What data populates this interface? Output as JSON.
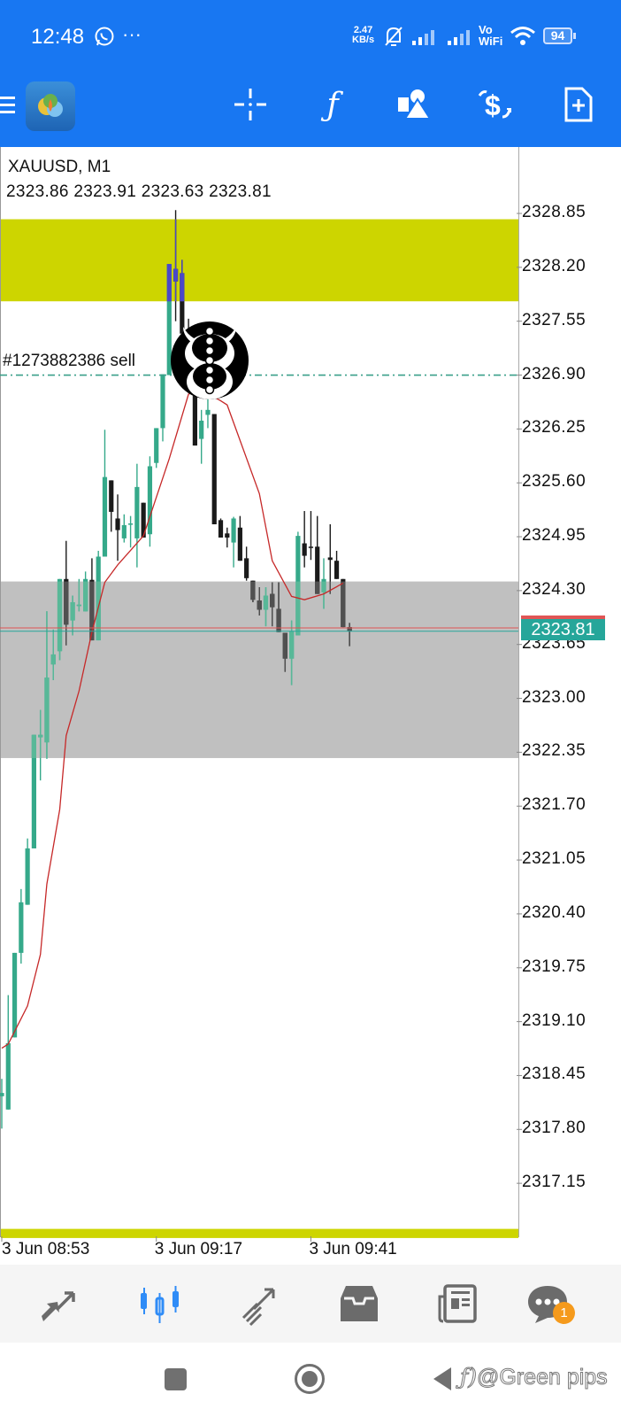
{
  "status_bar": {
    "time": "12:48",
    "more": "···",
    "net_speed_value": "2.47",
    "net_speed_unit": "KB/s",
    "vowifi_top": "Vo",
    "vowifi_bottom": "WiFi",
    "battery": "94"
  },
  "toolbar": {
    "icons": [
      "menu-icon",
      "app-logo",
      "crosshair-icon",
      "indicator-f-icon",
      "objects-icon",
      "trade-icon",
      "new-order-icon"
    ]
  },
  "chart": {
    "symbol_timeframe": "XAUUSD, M1",
    "ohlc_line": "2323.86 2323.91 2323.63 2323.81",
    "order_label": "#1273882386 sell",
    "current_price_label": "2323.81"
  },
  "chart_data": {
    "type": "candlestick",
    "symbol": "XAUUSD",
    "timeframe": "M1",
    "y_ticks": [
      "2328.85",
      "2328.20",
      "2327.55",
      "2326.90",
      "2326.25",
      "2325.60",
      "2324.95",
      "2324.30",
      "2323.65",
      "2323.00",
      "2322.35",
      "2321.70",
      "2321.05",
      "2320.40",
      "2319.75",
      "2319.10",
      "2318.45",
      "2317.80",
      "2317.15"
    ],
    "x_ticks": [
      "3 Jun 08:53",
      "3 Jun 09:17",
      "3 Jun 09:41"
    ],
    "candles": [
      {
        "t": "08:53",
        "o": 2318.2,
        "h": 2318.41,
        "l": 2317.81,
        "c": 2318.24
      },
      {
        "t": "08:54",
        "o": 2318.04,
        "h": 2319.42,
        "l": 2318.04,
        "c": 2318.84
      },
      {
        "t": "08:55",
        "o": 2318.91,
        "h": 2319.93,
        "l": 2318.91,
        "c": 2319.93
      },
      {
        "t": "08:56",
        "o": 2319.93,
        "h": 2320.7,
        "l": 2319.8,
        "c": 2320.54
      },
      {
        "t": "08:57",
        "o": 2320.51,
        "h": 2321.31,
        "l": 2320.51,
        "c": 2321.19
      },
      {
        "t": "08:58",
        "o": 2321.19,
        "h": 2322.56,
        "l": 2321.19,
        "c": 2322.56
      },
      {
        "t": "08:59",
        "o": 2322.53,
        "h": 2322.86,
        "l": 2322.01,
        "c": 2322.56
      },
      {
        "t": "09:00",
        "o": 2322.47,
        "h": 2324.05,
        "l": 2322.27,
        "c": 2323.25
      },
      {
        "t": "09:01",
        "o": 2323.41,
        "h": 2323.83,
        "l": 2323.22,
        "c": 2323.53
      },
      {
        "t": "09:02",
        "o": 2323.57,
        "h": 2324.44,
        "l": 2323.46,
        "c": 2324.44
      },
      {
        "t": "09:03",
        "o": 2324.44,
        "h": 2324.9,
        "l": 2323.64,
        "c": 2323.89
      },
      {
        "t": "09:04",
        "o": 2323.94,
        "h": 2324.24,
        "l": 2323.76,
        "c": 2324.16
      },
      {
        "t": "09:05",
        "o": 2324.12,
        "h": 2324.44,
        "l": 2324.05,
        "c": 2324.13
      },
      {
        "t": "09:06",
        "o": 2324.05,
        "h": 2324.53,
        "l": 2324.05,
        "c": 2324.44
      },
      {
        "t": "09:07",
        "o": 2324.43,
        "h": 2324.69,
        "l": 2323.7,
        "c": 2323.7
      },
      {
        "t": "09:08",
        "o": 2323.7,
        "h": 2324.78,
        "l": 2323.7,
        "c": 2324.71
      },
      {
        "t": "09:09",
        "o": 2324.71,
        "h": 2326.24,
        "l": 2324.71,
        "c": 2325.67
      },
      {
        "t": "09:10",
        "o": 2325.63,
        "h": 2325.63,
        "l": 2325.01,
        "c": 2325.25
      },
      {
        "t": "09:11",
        "o": 2325.17,
        "h": 2325.46,
        "l": 2324.66,
        "c": 2325.03
      },
      {
        "t": "09:12",
        "o": 2324.93,
        "h": 2325.22,
        "l": 2324.88,
        "c": 2325.09
      },
      {
        "t": "09:13",
        "o": 2325.1,
        "h": 2325.2,
        "l": 2324.82,
        "c": 2325.11
      },
      {
        "t": "09:14",
        "o": 2324.93,
        "h": 2325.83,
        "l": 2324.58,
        "c": 2325.55
      },
      {
        "t": "09:15",
        "o": 2325.36,
        "h": 2325.36,
        "l": 2324.94,
        "c": 2324.94
      },
      {
        "t": "09:16",
        "o": 2324.98,
        "h": 2325.92,
        "l": 2324.83,
        "c": 2325.8
      },
      {
        "t": "09:17",
        "o": 2325.84,
        "h": 2326.26,
        "l": 2325.78,
        "c": 2326.26
      },
      {
        "t": "09:18",
        "o": 2326.26,
        "h": 2326.91,
        "l": 2326.1,
        "c": 2326.91
      },
      {
        "t": "09:19",
        "o": 2326.9,
        "h": 2328.24,
        "l": 2326.9,
        "c": 2328.24
      },
      {
        "t": "09:20",
        "o": 2328.18,
        "h": 2328.89,
        "l": 2327.55,
        "c": 2328.03
      },
      {
        "t": "09:21",
        "o": 2328.13,
        "h": 2328.29,
        "l": 2327.4,
        "c": 2327.4
      },
      {
        "t": "09:22",
        "o": 2327.4,
        "h": 2327.58,
        "l": 2326.83,
        "c": 2326.94
      },
      {
        "t": "09:23",
        "o": 2326.72,
        "h": 2326.75,
        "l": 2326.05,
        "c": 2326.05
      },
      {
        "t": "09:24",
        "o": 2326.13,
        "h": 2326.48,
        "l": 2325.83,
        "c": 2326.35
      },
      {
        "t": "09:25",
        "o": 2326.42,
        "h": 2326.69,
        "l": 2326.26,
        "c": 2326.48
      },
      {
        "t": "09:26",
        "o": 2326.43,
        "h": 2326.43,
        "l": 2325.1,
        "c": 2325.1
      },
      {
        "t": "09:27",
        "o": 2325.15,
        "h": 2325.17,
        "l": 2324.94,
        "c": 2324.94
      },
      {
        "t": "09:28",
        "o": 2324.99,
        "h": 2325.06,
        "l": 2324.82,
        "c": 2324.94
      },
      {
        "t": "09:29",
        "o": 2324.88,
        "h": 2325.19,
        "l": 2324.58,
        "c": 2325.17
      },
      {
        "t": "09:30",
        "o": 2325.06,
        "h": 2325.2,
        "l": 2324.66,
        "c": 2324.66
      },
      {
        "t": "09:31",
        "o": 2324.69,
        "h": 2324.83,
        "l": 2324.42,
        "c": 2324.45
      },
      {
        "t": "09:32",
        "o": 2324.42,
        "h": 2324.42,
        "l": 2324.16,
        "c": 2324.19
      },
      {
        "t": "09:33",
        "o": 2324.18,
        "h": 2324.34,
        "l": 2324.0,
        "c": 2324.07
      },
      {
        "t": "09:34",
        "o": 2324.07,
        "h": 2324.34,
        "l": 2323.87,
        "c": 2324.24
      },
      {
        "t": "09:35",
        "o": 2324.26,
        "h": 2324.4,
        "l": 2323.87,
        "c": 2324.1
      },
      {
        "t": "09:36",
        "o": 2324.08,
        "h": 2324.4,
        "l": 2323.8,
        "c": 2323.8
      },
      {
        "t": "09:37",
        "o": 2323.79,
        "h": 2323.79,
        "l": 2323.32,
        "c": 2323.48
      },
      {
        "t": "09:38",
        "o": 2323.48,
        "h": 2323.94,
        "l": 2323.16,
        "c": 2323.81
      },
      {
        "t": "09:39",
        "o": 2323.76,
        "h": 2325.01,
        "l": 2323.76,
        "c": 2324.96
      },
      {
        "t": "09:40",
        "o": 2324.87,
        "h": 2325.26,
        "l": 2324.58,
        "c": 2324.72
      },
      {
        "t": "09:41",
        "o": 2324.83,
        "h": 2325.26,
        "l": 2324.67,
        "c": 2324.82
      },
      {
        "t": "09:42",
        "o": 2324.83,
        "h": 2325.2,
        "l": 2324.26,
        "c": 2324.26
      },
      {
        "t": "09:43",
        "o": 2324.28,
        "h": 2324.69,
        "l": 2324.08,
        "c": 2324.44
      },
      {
        "t": "09:44",
        "o": 2324.7,
        "h": 2325.1,
        "l": 2324.26,
        "c": 2324.67
      },
      {
        "t": "09:45",
        "o": 2324.66,
        "h": 2324.78,
        "l": 2324.44,
        "c": 2324.44
      },
      {
        "t": "09:46",
        "o": 2324.44,
        "h": 2324.44,
        "l": 2323.86,
        "c": 2323.86
      },
      {
        "t": "09:47",
        "o": 2323.86,
        "h": 2323.91,
        "l": 2323.63,
        "c": 2323.81
      }
    ],
    "moving_average": [
      {
        "t": "08:53",
        "v": 2318.78
      },
      {
        "t": "08:54",
        "v": 2318.83
      },
      {
        "t": "08:57",
        "v": 2319.29
      },
      {
        "t": "08:59",
        "v": 2319.91
      },
      {
        "t": "09:00",
        "v": 2320.76
      },
      {
        "t": "09:02",
        "v": 2321.66
      },
      {
        "t": "09:03",
        "v": 2322.55
      },
      {
        "t": "09:05",
        "v": 2323.09
      },
      {
        "t": "09:07",
        "v": 2323.8
      },
      {
        "t": "09:09",
        "v": 2324.4
      },
      {
        "t": "09:11",
        "v": 2324.61
      },
      {
        "t": "09:15",
        "v": 2324.96
      },
      {
        "t": "09:19",
        "v": 2325.89
      },
      {
        "t": "09:22",
        "v": 2326.67
      },
      {
        "t": "09:24",
        "v": 2326.72
      },
      {
        "t": "09:27",
        "v": 2326.59
      },
      {
        "t": "09:28",
        "v": 2326.54
      },
      {
        "t": "09:33",
        "v": 2325.47
      },
      {
        "t": "09:35",
        "v": 2324.66
      },
      {
        "t": "09:38",
        "v": 2324.23
      },
      {
        "t": "09:40",
        "v": 2324.19
      },
      {
        "t": "09:43",
        "v": 2324.26
      },
      {
        "t": "09:46",
        "v": 2324.39
      }
    ],
    "zones": [
      {
        "name": "supply-zone",
        "top": 2328.78,
        "bottom": 2327.79,
        "color": "#cdd500"
      },
      {
        "name": "demand-zone",
        "top": 2324.41,
        "bottom": 2322.28,
        "color": "#c0c0c0"
      },
      {
        "name": "lower-zone",
        "top": 2316.6,
        "bottom": 2316.49,
        "color": "#cdd500"
      }
    ],
    "order_line": {
      "price": 2326.9,
      "side": "sell",
      "color": "#3aa08a"
    },
    "bid": 2323.81,
    "ask": 2323.85,
    "colors": {
      "bull": "#35a98a",
      "bear": "#1a1a1a",
      "ma": "#c62828",
      "bid": "#26a69a",
      "ask": "#e05555",
      "zone_bull_in_gray": "#58b898",
      "zone_bear_in_gray": "#505050",
      "in_yellow": "#4a48c8"
    }
  },
  "bottom_nav": {
    "items": [
      "quotes",
      "chart",
      "trade",
      "history",
      "news",
      "messages"
    ],
    "messages_badge": "1",
    "active_color": "#2f8cf7"
  },
  "watermark": "@Green pips"
}
